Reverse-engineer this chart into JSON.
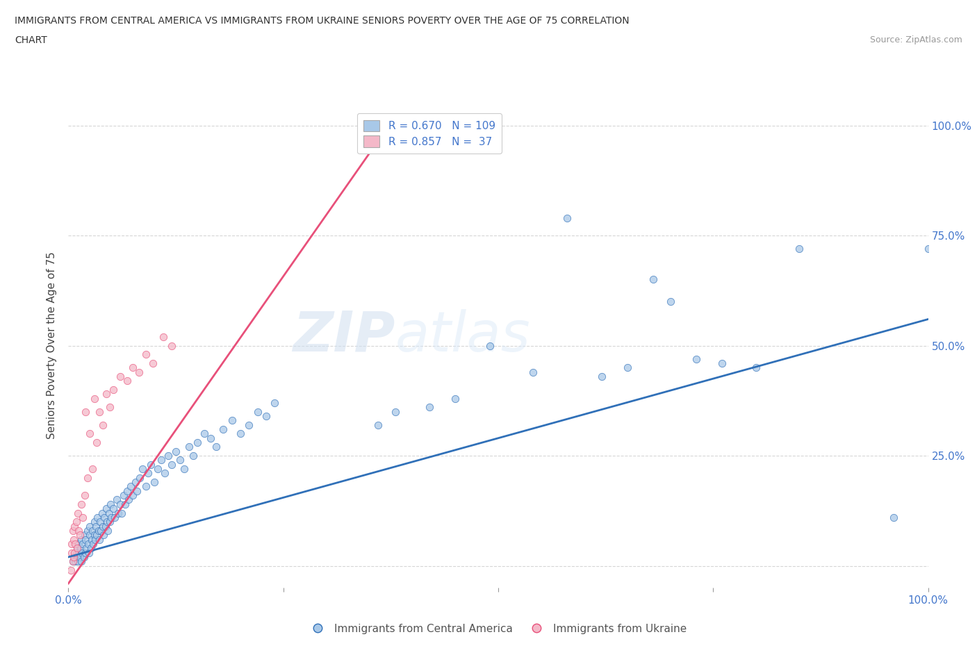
{
  "title_line1": "IMMIGRANTS FROM CENTRAL AMERICA VS IMMIGRANTS FROM UKRAINE SENIORS POVERTY OVER THE AGE OF 75 CORRELATION",
  "title_line2": "CHART",
  "source_text": "Source: ZipAtlas.com",
  "ylabel": "Seniors Poverty Over the Age of 75",
  "xlim": [
    0,
    1.0
  ],
  "ylim": [
    -0.05,
    1.05
  ],
  "yticks": [
    0.0,
    0.25,
    0.5,
    0.75,
    1.0
  ],
  "xticks": [
    0.0,
    0.25,
    0.5,
    0.75,
    1.0
  ],
  "xticklabels": [
    "0.0%",
    "",
    "",
    "",
    "100.0%"
  ],
  "yticklabels_right": [
    "",
    "25.0%",
    "50.0%",
    "75.0%",
    "100.0%"
  ],
  "color_blue": "#a8c8e8",
  "color_pink": "#f4b8c8",
  "color_blue_line": "#3070b8",
  "color_pink_line": "#e8507a",
  "legend_blue_r": "0.670",
  "legend_blue_n": "109",
  "legend_pink_r": "0.857",
  "legend_pink_n": " 37",
  "label_blue": "Immigrants from Central America",
  "label_pink": "Immigrants from Ukraine",
  "watermark_zip": "ZIP",
  "watermark_atlas": "atlas",
  "blue_line_x": [
    0.0,
    1.0
  ],
  "blue_line_y": [
    0.02,
    0.56
  ],
  "pink_line_x": [
    0.0,
    0.38
  ],
  "pink_line_y": [
    -0.04,
    1.02
  ],
  "blue_scatter_x": [
    0.005,
    0.007,
    0.008,
    0.009,
    0.01,
    0.01,
    0.011,
    0.012,
    0.012,
    0.013,
    0.014,
    0.015,
    0.015,
    0.016,
    0.017,
    0.018,
    0.019,
    0.02,
    0.02,
    0.021,
    0.022,
    0.023,
    0.024,
    0.025,
    0.025,
    0.026,
    0.027,
    0.028,
    0.029,
    0.03,
    0.03,
    0.031,
    0.032,
    0.033,
    0.034,
    0.035,
    0.036,
    0.037,
    0.038,
    0.039,
    0.04,
    0.041,
    0.042,
    0.043,
    0.044,
    0.045,
    0.046,
    0.047,
    0.048,
    0.049,
    0.05,
    0.052,
    0.054,
    0.056,
    0.058,
    0.06,
    0.062,
    0.064,
    0.066,
    0.068,
    0.07,
    0.072,
    0.075,
    0.078,
    0.08,
    0.083,
    0.086,
    0.09,
    0.093,
    0.096,
    0.1,
    0.104,
    0.108,
    0.112,
    0.116,
    0.12,
    0.125,
    0.13,
    0.135,
    0.14,
    0.145,
    0.15,
    0.158,
    0.165,
    0.172,
    0.18,
    0.19,
    0.2,
    0.21,
    0.22,
    0.23,
    0.24,
    0.36,
    0.38,
    0.42,
    0.45,
    0.49,
    0.54,
    0.58,
    0.62,
    0.65,
    0.68,
    0.7,
    0.73,
    0.76,
    0.8,
    0.85,
    0.96,
    1.0
  ],
  "blue_scatter_y": [
    0.01,
    0.02,
    0.01,
    0.03,
    0.02,
    0.04,
    0.01,
    0.03,
    0.05,
    0.02,
    0.04,
    0.01,
    0.06,
    0.03,
    0.05,
    0.02,
    0.07,
    0.03,
    0.06,
    0.04,
    0.08,
    0.05,
    0.03,
    0.07,
    0.09,
    0.04,
    0.06,
    0.08,
    0.05,
    0.07,
    0.1,
    0.06,
    0.09,
    0.07,
    0.11,
    0.08,
    0.06,
    0.1,
    0.08,
    0.12,
    0.09,
    0.07,
    0.11,
    0.09,
    0.13,
    0.1,
    0.08,
    0.12,
    0.1,
    0.14,
    0.11,
    0.13,
    0.11,
    0.15,
    0.12,
    0.14,
    0.12,
    0.16,
    0.14,
    0.17,
    0.15,
    0.18,
    0.16,
    0.19,
    0.17,
    0.2,
    0.22,
    0.18,
    0.21,
    0.23,
    0.19,
    0.22,
    0.24,
    0.21,
    0.25,
    0.23,
    0.26,
    0.24,
    0.22,
    0.27,
    0.25,
    0.28,
    0.3,
    0.29,
    0.27,
    0.31,
    0.33,
    0.3,
    0.32,
    0.35,
    0.34,
    0.37,
    0.32,
    0.35,
    0.36,
    0.38,
    0.5,
    0.44,
    0.79,
    0.43,
    0.45,
    0.65,
    0.6,
    0.47,
    0.46,
    0.45,
    0.72,
    0.11,
    0.72
  ],
  "pink_scatter_x": [
    0.003,
    0.004,
    0.004,
    0.005,
    0.005,
    0.006,
    0.006,
    0.007,
    0.007,
    0.008,
    0.009,
    0.01,
    0.011,
    0.012,
    0.013,
    0.015,
    0.017,
    0.019,
    0.02,
    0.022,
    0.025,
    0.028,
    0.03,
    0.033,
    0.036,
    0.04,
    0.044,
    0.048,
    0.052,
    0.06,
    0.068,
    0.075,
    0.082,
    0.09,
    0.098,
    0.11,
    0.12
  ],
  "pink_scatter_y": [
    -0.01,
    0.03,
    0.05,
    0.01,
    0.08,
    0.02,
    0.06,
    0.03,
    0.09,
    0.05,
    0.1,
    0.04,
    0.12,
    0.08,
    0.07,
    0.14,
    0.11,
    0.16,
    0.35,
    0.2,
    0.3,
    0.22,
    0.38,
    0.28,
    0.35,
    0.32,
    0.39,
    0.36,
    0.4,
    0.43,
    0.42,
    0.45,
    0.44,
    0.48,
    0.46,
    0.52,
    0.5
  ]
}
